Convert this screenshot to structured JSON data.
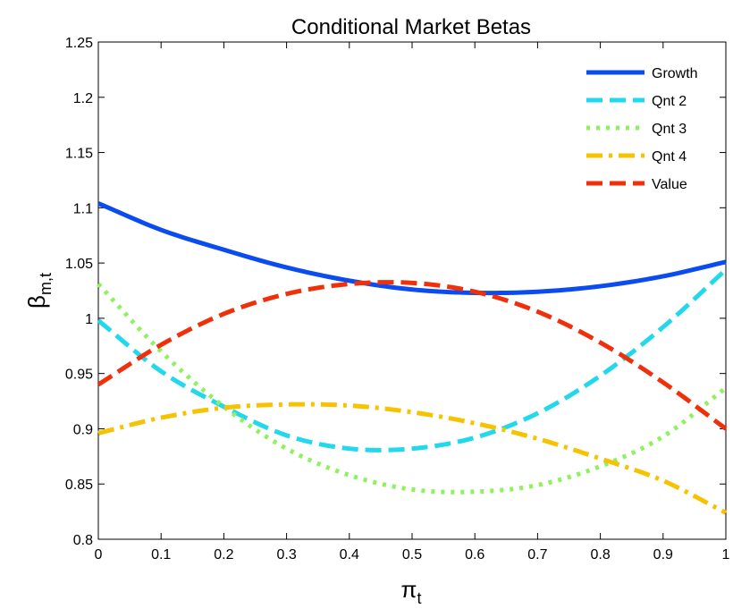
{
  "chart_data": {
    "type": "line",
    "title": "Conditional Market Betas",
    "xlabel": {
      "main": "π",
      "sub": "t"
    },
    "ylabel": {
      "main": "β",
      "sub": "m,t"
    },
    "xlim": [
      0,
      1
    ],
    "ylim": [
      0.8,
      1.25
    ],
    "xticks": [
      0,
      0.1,
      0.2,
      0.3,
      0.4,
      0.5,
      0.6,
      0.7,
      0.8,
      0.9,
      1
    ],
    "xtick_labels": [
      "0",
      "0.1",
      "0.2",
      "0.3",
      "0.4",
      "0.5",
      "0.6",
      "0.7",
      "0.8",
      "0.9",
      "1"
    ],
    "yticks": [
      0.8,
      0.85,
      0.9,
      0.95,
      1,
      1.05,
      1.1,
      1.15,
      1.2,
      1.25
    ],
    "ytick_labels": [
      "0.8",
      "0.85",
      "0.9",
      "0.95",
      "1",
      "1.05",
      "1.1",
      "1.15",
      "1.2",
      "1.25"
    ],
    "grid": false,
    "legend_position": "top-right",
    "x": [
      0,
      0.1,
      0.2,
      0.3,
      0.4,
      0.5,
      0.6,
      0.7,
      0.8,
      0.9,
      1
    ],
    "series": [
      {
        "name": "Growth",
        "color": "#0b4cf0",
        "style": "solid",
        "values": [
          1.104,
          1.08,
          1.062,
          1.046,
          1.034,
          1.026,
          1.023,
          1.024,
          1.029,
          1.038,
          1.051
        ]
      },
      {
        "name": "Qnt 2",
        "color": "#22d8ec",
        "style": "dashed",
        "values": [
          0.998,
          0.952,
          0.92,
          0.894,
          0.882,
          0.882,
          0.892,
          0.914,
          0.948,
          0.992,
          1.044
        ]
      },
      {
        "name": "Qnt 3",
        "color": "#8ef25e",
        "style": "dotted",
        "values": [
          1.031,
          0.97,
          0.92,
          0.882,
          0.858,
          0.845,
          0.843,
          0.849,
          0.866,
          0.893,
          0.937
        ]
      },
      {
        "name": "Qnt 4",
        "color": "#f6c300",
        "style": "dashdot",
        "values": [
          0.896,
          0.91,
          0.919,
          0.922,
          0.921,
          0.915,
          0.905,
          0.891,
          0.873,
          0.853,
          0.824
        ]
      },
      {
        "name": "Value",
        "color": "#f0300a",
        "style": "dashed",
        "values": [
          0.94,
          0.976,
          1.004,
          1.022,
          1.031,
          1.032,
          1.024,
          1.006,
          0.978,
          0.942,
          0.9
        ]
      }
    ]
  }
}
